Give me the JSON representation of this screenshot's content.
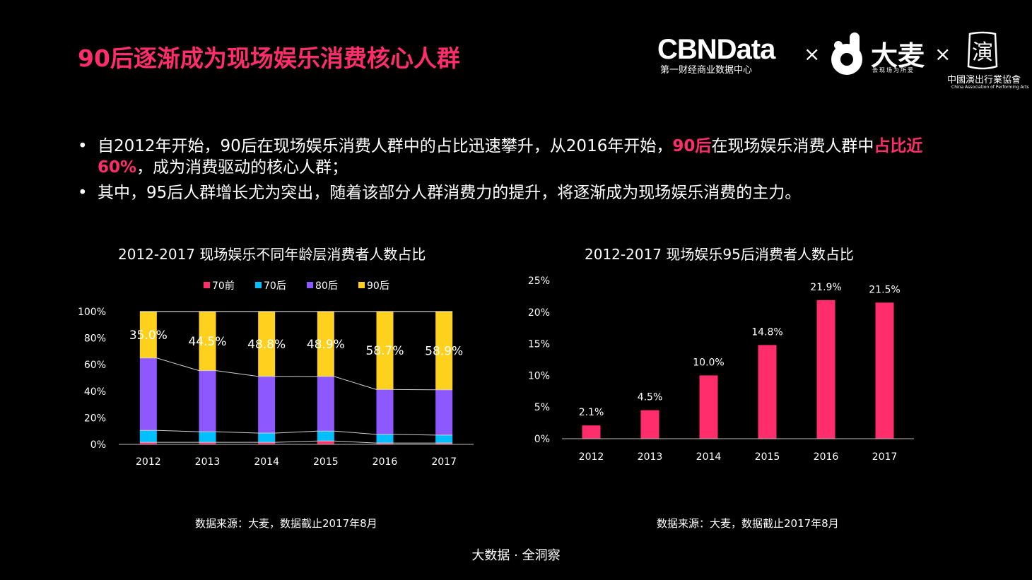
{
  "page": {
    "title": "90后逐渐成为现场娱乐消费核心人群",
    "footer": "大数据 · 全洞察"
  },
  "logos": {
    "cbndata_name": "CBNData",
    "cbndata_sub": "第一财经商业数据中心",
    "separator": "×",
    "damai_name": "大麦",
    "damai_slogan": "去现场为所爱",
    "capa_glyph": "演",
    "capa_cn": "中國演出行業協會",
    "capa_en": "China Association of Performing Arts"
  },
  "bullets": [
    {
      "parts": [
        {
          "text": "自2012年开始，90后在现场娱乐消费人群中的占比迅速攀升，从2016年开始，",
          "highlight": false
        },
        {
          "text": "90后",
          "highlight": true
        },
        {
          "text": "在现场娱乐消费人群中",
          "highlight": false
        },
        {
          "text": "占比近60%",
          "highlight": true
        },
        {
          "text": "，成为消费驱动的核心人群；",
          "highlight": false
        }
      ]
    },
    {
      "parts": [
        {
          "text": "其中，95后人群增长尤为突出，随着该部分人群消费力的提升，将逐渐成为现场娱乐消费的主力。",
          "highlight": false
        }
      ]
    }
  ],
  "chart_data": [
    {
      "type": "bar",
      "stacked": true,
      "title": "2012-2017 现场娱乐不同年龄层消费者人数占比",
      "source": "数据来源：大麦，数据截止2017年8月",
      "categories": [
        "2012",
        "2013",
        "2014",
        "2015",
        "2016",
        "2017"
      ],
      "series": [
        {
          "name": "70前",
          "color": "#ff2d6b",
          "values": [
            1.5,
            1.5,
            1.5,
            2.5,
            1.0,
            1.0
          ]
        },
        {
          "name": "70后",
          "color": "#00bfff",
          "values": [
            9.0,
            8.0,
            7.0,
            7.5,
            6.5,
            6.0
          ]
        },
        {
          "name": "80后",
          "color": "#8e58ff",
          "values": [
            54.5,
            46.0,
            42.7,
            41.1,
            33.8,
            34.1
          ]
        },
        {
          "name": "90后",
          "color": "#ffd11f",
          "values": [
            35.0,
            44.5,
            48.8,
            48.9,
            58.7,
            58.9
          ]
        }
      ],
      "data_labels": [
        "35.0%",
        "44.5%",
        "48.8%",
        "48.9%",
        "58.7%",
        "58.9%"
      ],
      "ylim": [
        0,
        100
      ],
      "yticks": [
        "0%",
        "20%",
        "40%",
        "60%",
        "80%",
        "100%"
      ],
      "legend_position": "top",
      "grid": false
    },
    {
      "type": "bar",
      "title": "2012-2017 现场娱乐95后消费者人数占比",
      "source": "数据来源：大麦，数据截止2017年8月",
      "categories": [
        "2012",
        "2013",
        "2014",
        "2015",
        "2016",
        "2017"
      ],
      "values": [
        2.1,
        4.5,
        10.0,
        14.8,
        21.9,
        21.5
      ],
      "data_labels": [
        "2.1%",
        "4.5%",
        "10.0%",
        "14.8%",
        "21.9%",
        "21.5%"
      ],
      "ylim": [
        0,
        25
      ],
      "yticks": [
        "0%",
        "5%",
        "10%",
        "15%",
        "20%",
        "25%"
      ],
      "color": "#ff2d6b",
      "grid": false
    }
  ]
}
